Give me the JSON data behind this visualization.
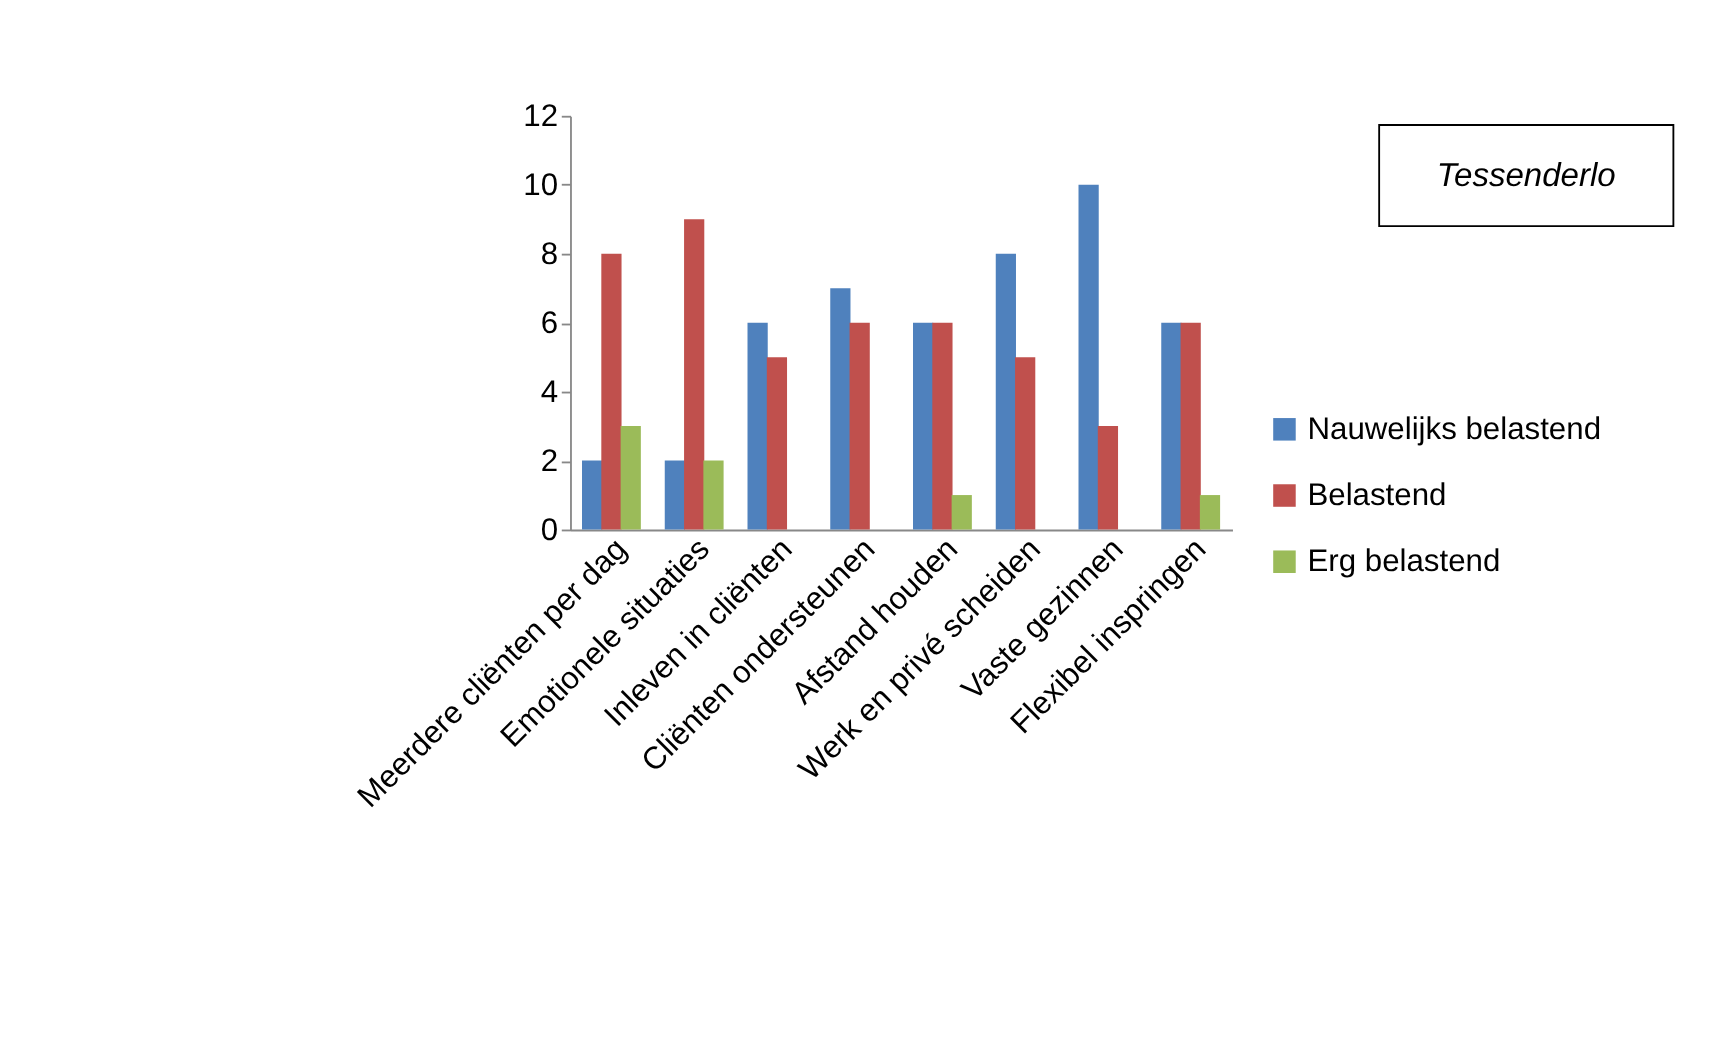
{
  "chart_data": {
    "type": "bar",
    "title": "Tessenderlo",
    "categories": [
      "Meerdere cliënten per dag",
      "Emotionele situaties",
      "Inleven in cliënten",
      "Cliënten ondersteunen",
      "Afstand houden",
      "Werk en privé scheiden",
      "Vaste gezinnen",
      "Flexibel inspringen"
    ],
    "series": [
      {
        "name": "Nauwelijks belastend",
        "color": "#4f81bd",
        "values": [
          2,
          2,
          6,
          7,
          6,
          8,
          10,
          6
        ]
      },
      {
        "name": "Belastend",
        "color": "#c0504d",
        "values": [
          8,
          9,
          5,
          6,
          6,
          5,
          3,
          6
        ]
      },
      {
        "name": "Erg belastend",
        "color": "#9bbb59",
        "values": [
          3,
          2,
          0,
          0,
          1,
          0,
          0,
          1
        ]
      }
    ],
    "ylim": [
      0,
      12
    ],
    "yticks": [
      0,
      2,
      4,
      6,
      8,
      10,
      12
    ],
    "grid": false,
    "legend": "right"
  }
}
